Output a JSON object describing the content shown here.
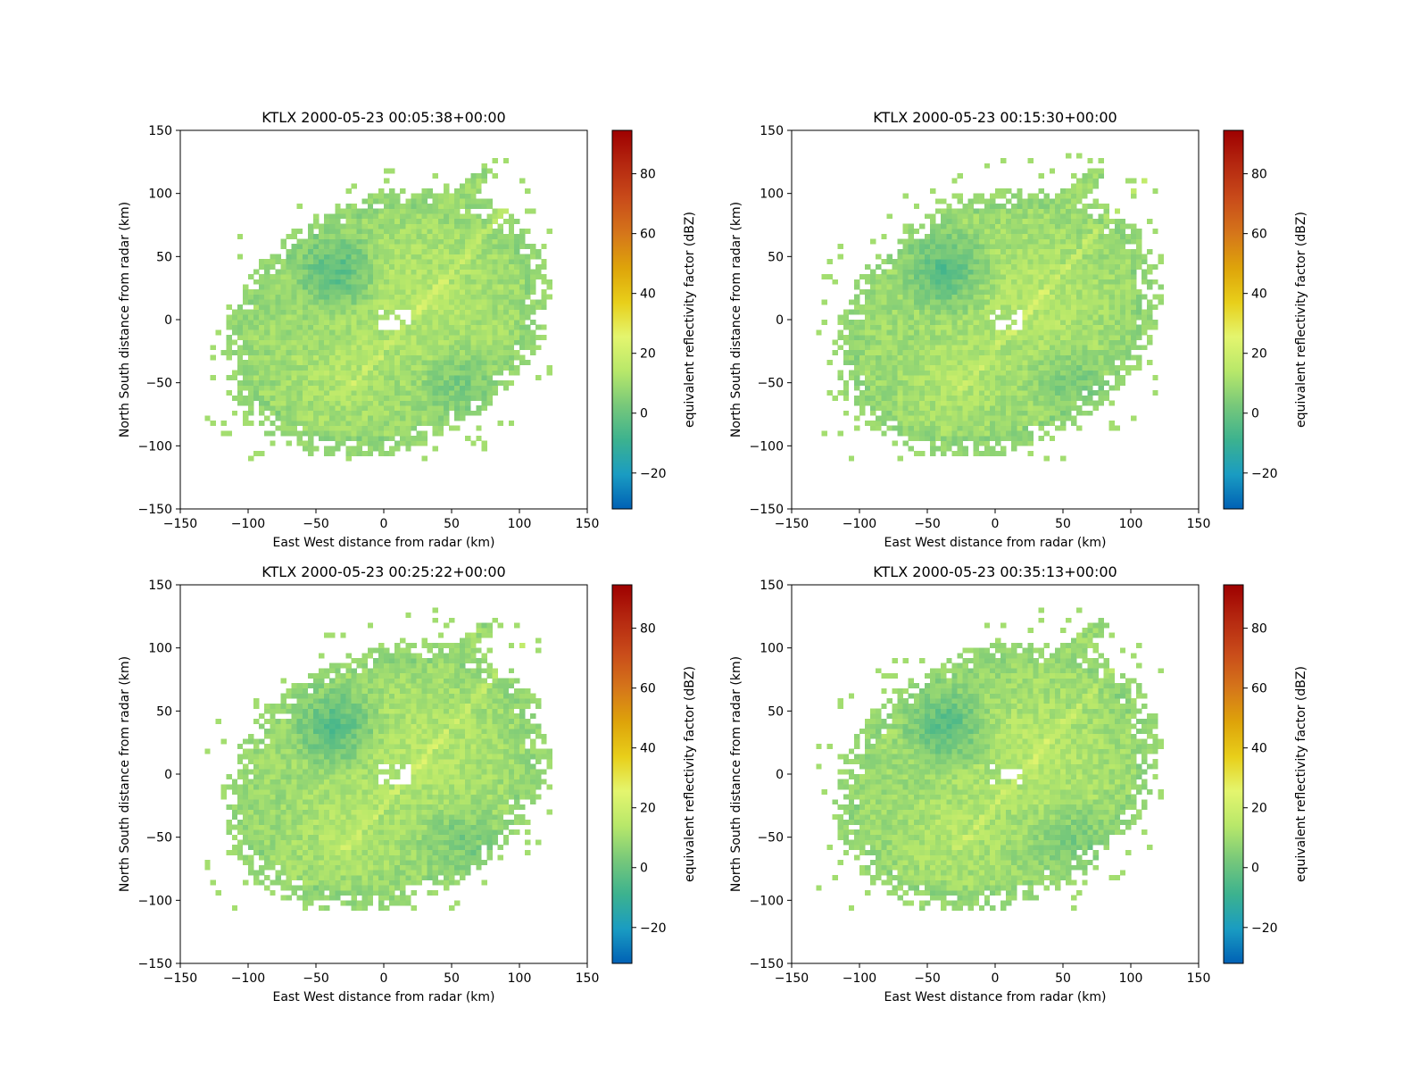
{
  "figure": {
    "panels": [
      {
        "title": "KTLX 2000-05-23 00:05:38+00:00"
      },
      {
        "title": "KTLX 2000-05-23 00:15:30+00:00"
      },
      {
        "title": "KTLX 2000-05-23 00:25:22+00:00"
      },
      {
        "title": "KTLX 2000-05-23 00:35:13+00:00"
      }
    ]
  },
  "chart_data": [
    {
      "type": "heatmap",
      "title": "KTLX 2000-05-23 00:05:38+00:00",
      "xlabel": "East West distance from radar (km)",
      "ylabel": "North South distance from radar (km)",
      "xlim": [
        -150,
        150
      ],
      "ylim": [
        -150,
        150
      ],
      "xticks": [
        "−150",
        "−100",
        "−50",
        "0",
        "50",
        "100",
        "150"
      ],
      "yticks": [
        "−150",
        "−100",
        "−50",
        "0",
        "50",
        "100",
        "150"
      ],
      "colorbar": {
        "label": "equivalent reflectivity factor (dBZ)",
        "range": [
          -32,
          94.5
        ],
        "ticks": [
          "−20",
          "0",
          "20",
          "40",
          "60",
          "80"
        ],
        "colormap": [
          "#0061b5",
          "#1a9cc2",
          "#3cb28f",
          "#77c87a",
          "#b8e86a",
          "#e4f56e",
          "#e8cf1a",
          "#dea40a",
          "#d5761a",
          "#c94c1a",
          "#b52810",
          "#9e0000"
        ]
      },
      "field": {
        "dominant_dbz": 10,
        "range_dbz": [
          -20,
          25
        ],
        "echo_extent_km": {
          "x": [
            -120,
            110
          ],
          "y": [
            -100,
            125
          ]
        },
        "grid": false,
        "legend": "colorbar right"
      }
    },
    {
      "type": "heatmap",
      "title": "KTLX 2000-05-23 00:15:30+00:00",
      "xlabel": "East West distance from radar (km)",
      "ylabel": "North South distance from radar (km)",
      "xlim": [
        -150,
        150
      ],
      "ylim": [
        -150,
        150
      ],
      "xticks": [
        "−150",
        "−100",
        "−50",
        "0",
        "50",
        "100",
        "150"
      ],
      "yticks": [
        "−150",
        "−100",
        "−50",
        "0",
        "50",
        "100",
        "150"
      ],
      "colorbar": {
        "label": "equivalent reflectivity factor (dBZ)",
        "range": [
          -32,
          94.5
        ],
        "ticks": [
          "−20",
          "0",
          "20",
          "40",
          "60",
          "80"
        ],
        "colormap": [
          "#0061b5",
          "#1a9cc2",
          "#3cb28f",
          "#77c87a",
          "#b8e86a",
          "#e4f56e",
          "#e8cf1a",
          "#dea40a",
          "#d5761a",
          "#c94c1a",
          "#b52810",
          "#9e0000"
        ]
      },
      "field": {
        "dominant_dbz": 10,
        "range_dbz": [
          -20,
          25
        ],
        "echo_extent_km": {
          "x": [
            -120,
            110
          ],
          "y": [
            -100,
            125
          ]
        },
        "grid": false,
        "legend": "colorbar right"
      }
    },
    {
      "type": "heatmap",
      "title": "KTLX 2000-05-23 00:25:22+00:00",
      "xlabel": "East West distance from radar (km)",
      "ylabel": "North South distance from radar (km)",
      "xlim": [
        -150,
        150
      ],
      "ylim": [
        -150,
        150
      ],
      "xticks": [
        "−150",
        "−100",
        "−50",
        "0",
        "50",
        "100",
        "150"
      ],
      "yticks": [
        "−150",
        "−100",
        "−50",
        "0",
        "50",
        "100",
        "150"
      ],
      "colorbar": {
        "label": "equivalent reflectivity factor (dBZ)",
        "range": [
          -32,
          94.5
        ],
        "ticks": [
          "−20",
          "0",
          "20",
          "40",
          "60",
          "80"
        ],
        "colormap": [
          "#0061b5",
          "#1a9cc2",
          "#3cb28f",
          "#77c87a",
          "#b8e86a",
          "#e4f56e",
          "#e8cf1a",
          "#dea40a",
          "#d5761a",
          "#c94c1a",
          "#b52810",
          "#9e0000"
        ]
      },
      "field": {
        "dominant_dbz": 10,
        "range_dbz": [
          -20,
          25
        ],
        "echo_extent_km": {
          "x": [
            -120,
            110
          ],
          "y": [
            -100,
            125
          ]
        },
        "grid": false,
        "legend": "colorbar right"
      }
    },
    {
      "type": "heatmap",
      "title": "KTLX 2000-05-23 00:35:13+00:00",
      "xlabel": "East West distance from radar (km)",
      "ylabel": "North South distance from radar (km)",
      "xlim": [
        -150,
        150
      ],
      "ylim": [
        -150,
        150
      ],
      "xticks": [
        "−150",
        "−100",
        "−50",
        "0",
        "50",
        "100",
        "150"
      ],
      "yticks": [
        "−150",
        "−100",
        "−50",
        "0",
        "50",
        "100",
        "150"
      ],
      "colorbar": {
        "label": "equivalent reflectivity factor (dBZ)",
        "range": [
          -32,
          94.5
        ],
        "ticks": [
          "−20",
          "0",
          "20",
          "40",
          "60",
          "80"
        ],
        "colormap": [
          "#0061b5",
          "#1a9cc2",
          "#3cb28f",
          "#77c87a",
          "#b8e86a",
          "#e4f56e",
          "#e8cf1a",
          "#dea40a",
          "#d5761a",
          "#c94c1a",
          "#b52810",
          "#9e0000"
        ]
      },
      "field": {
        "dominant_dbz": 10,
        "range_dbz": [
          -20,
          25
        ],
        "echo_extent_km": {
          "x": [
            -120,
            110
          ],
          "y": [
            -100,
            125
          ]
        },
        "grid": false,
        "legend": "colorbar right"
      }
    }
  ]
}
